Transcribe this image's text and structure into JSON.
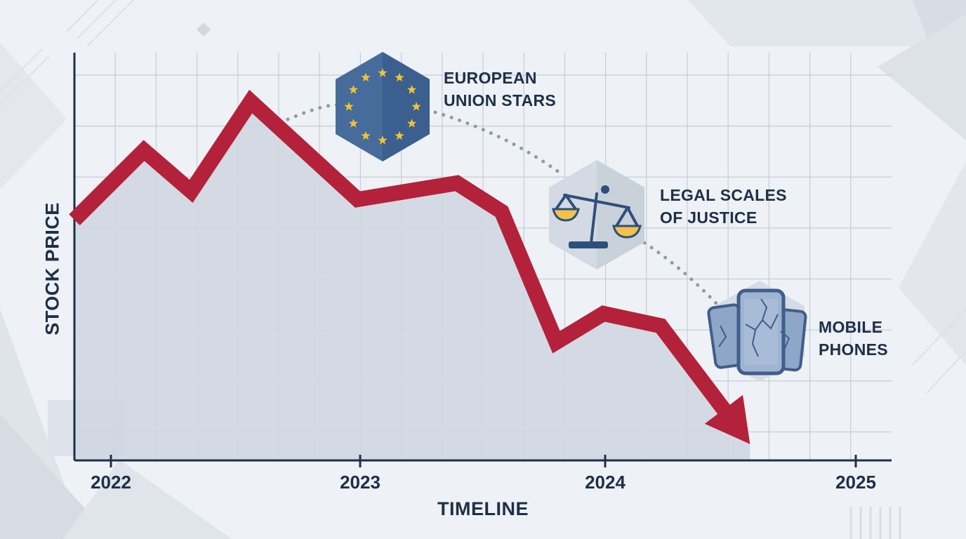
{
  "chart_data": {
    "type": "line",
    "title": "",
    "xlabel": "TIMELINE",
    "ylabel": "STOCK PRICE",
    "x_ticks": [
      "2022",
      "2023",
      "2024",
      "2025"
    ],
    "xlim": [
      2021.86,
      2025.15
    ],
    "ylim": [
      0,
      100
    ],
    "grid": true,
    "legend": "none",
    "series": [
      {
        "color": "#b3223a",
        "x": [
          2021.86,
          2022.14,
          2022.33,
          2022.57,
          2023.0,
          2023.4,
          2023.58,
          2023.8,
          2023.99,
          2024.22,
          2024.58
        ],
        "y": [
          59,
          76,
          66,
          88,
          64,
          68,
          61,
          29,
          36,
          33,
          4
        ]
      }
    ],
    "annotations": [
      {
        "lines": [
          "EUROPEAN",
          "UNION STARS"
        ],
        "icon": "eu-flag-stars-icon"
      },
      {
        "lines": [
          "LEGAL SCALES",
          "OF JUSTICE"
        ],
        "icon": "legal-scales-icon"
      },
      {
        "lines": [
          "MOBILE",
          "PHONES"
        ],
        "icon": "cracked-mobile-phones-icon"
      }
    ]
  },
  "colors": {
    "line": "#b3223a",
    "area": "#cfd6df",
    "axis": "#1e2f48",
    "grid": "#c7ced8",
    "eu_blue": "#466c9c",
    "star": "#f2c232",
    "hex_bg": "#d5dce5",
    "phone": "#3f5e8a"
  }
}
